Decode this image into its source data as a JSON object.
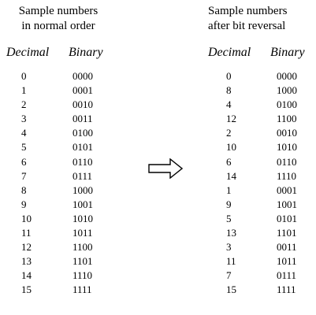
{
  "left": {
    "heading_line1": "Sample numbers",
    "heading_line2": "in normal order",
    "col_decimal_title": "Decimal",
    "col_binary_title": "Binary",
    "rows": [
      {
        "decimal": "0",
        "binary": "0000"
      },
      {
        "decimal": "1",
        "binary": "0001"
      },
      {
        "decimal": "2",
        "binary": "0010"
      },
      {
        "decimal": "3",
        "binary": "0011"
      },
      {
        "decimal": "4",
        "binary": "0100"
      },
      {
        "decimal": "5",
        "binary": "0101"
      },
      {
        "decimal": "6",
        "binary": "0110"
      },
      {
        "decimal": "7",
        "binary": "0111"
      },
      {
        "decimal": "8",
        "binary": "1000"
      },
      {
        "decimal": "9",
        "binary": "1001"
      },
      {
        "decimal": "10",
        "binary": "1010"
      },
      {
        "decimal": "11",
        "binary": "1011"
      },
      {
        "decimal": "12",
        "binary": "1100"
      },
      {
        "decimal": "13",
        "binary": "1101"
      },
      {
        "decimal": "14",
        "binary": "1110"
      },
      {
        "decimal": "15",
        "binary": "1111"
      }
    ]
  },
  "right": {
    "heading_line1": "Sample numbers",
    "heading_line2": "after bit reversal",
    "col_decimal_title": "Decimal",
    "col_binary_title": "Binary",
    "rows": [
      {
        "decimal": "0",
        "binary": "0000"
      },
      {
        "decimal": "8",
        "binary": "1000"
      },
      {
        "decimal": "4",
        "binary": "0100"
      },
      {
        "decimal": "12",
        "binary": "1100"
      },
      {
        "decimal": "2",
        "binary": "0010"
      },
      {
        "decimal": "10",
        "binary": "1010"
      },
      {
        "decimal": "6",
        "binary": "0110"
      },
      {
        "decimal": "14",
        "binary": "1110"
      },
      {
        "decimal": "1",
        "binary": "0001"
      },
      {
        "decimal": "9",
        "binary": "1001"
      },
      {
        "decimal": "5",
        "binary": "0101"
      },
      {
        "decimal": "13",
        "binary": "1101"
      },
      {
        "decimal": "3",
        "binary": "0011"
      },
      {
        "decimal": "11",
        "binary": "1011"
      },
      {
        "decimal": "7",
        "binary": "0111"
      },
      {
        "decimal": "15",
        "binary": "1111"
      }
    ]
  },
  "arrow": {
    "icon": "right-arrow-icon",
    "direction": "right"
  }
}
